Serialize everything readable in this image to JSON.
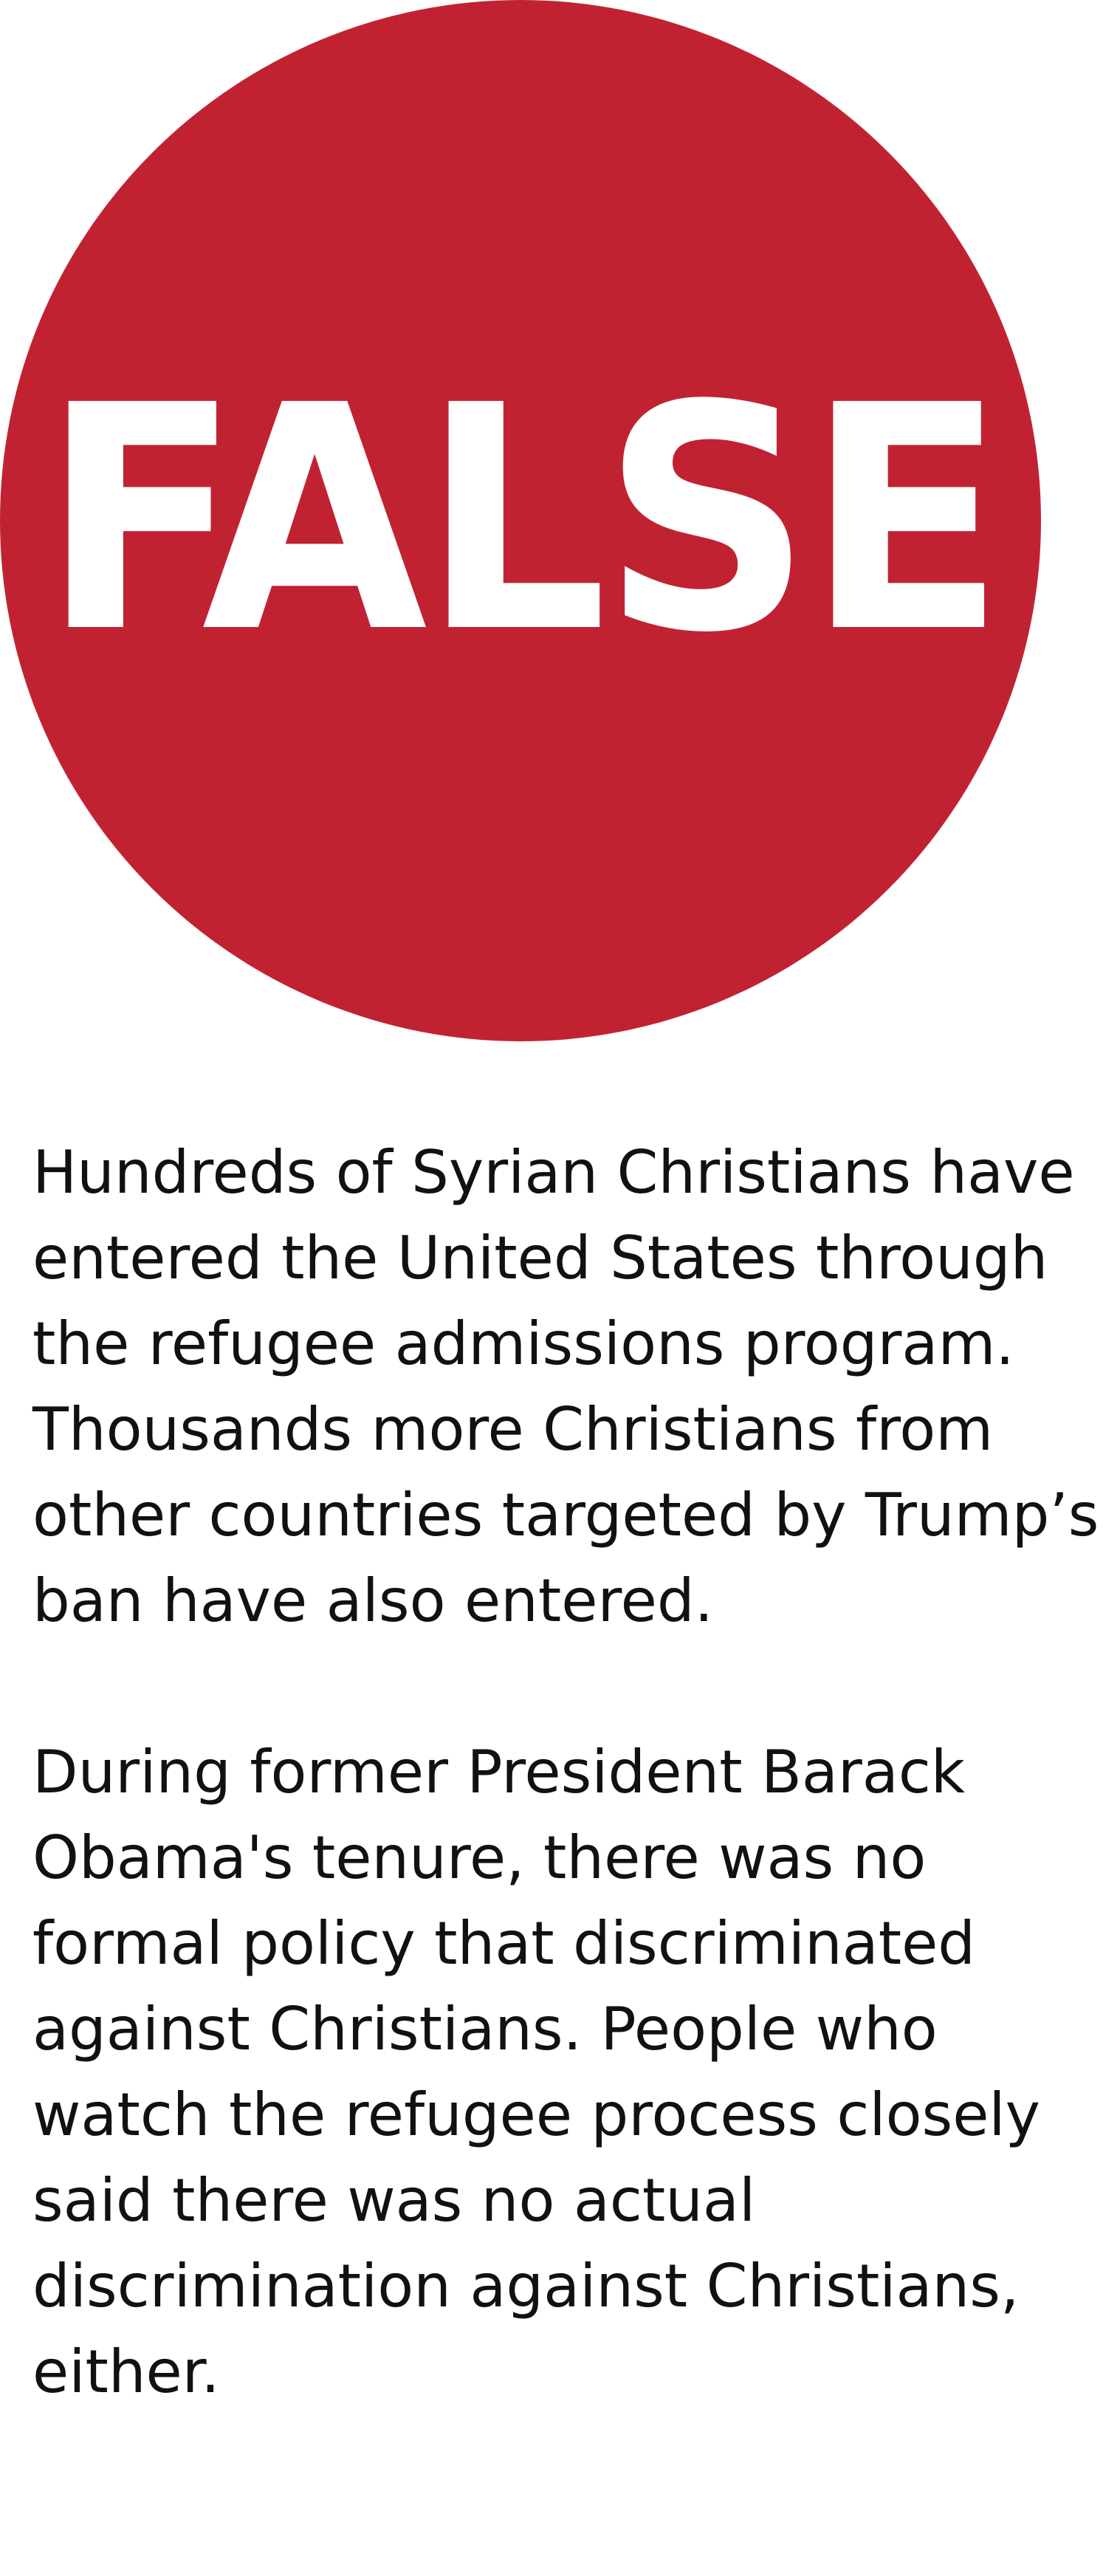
{
  "verdict": {
    "label": "FALSE",
    "color": "#c12232"
  },
  "paragraphs": [
    "Hundreds of Syrian Christians have entered the United States through the refugee admissions program. Thousands more Christians from other countries targeted by Trump’s ban have also entered.",
    "During former President Barack Obama's tenure, there was no formal policy that discriminated against Christians. People who watch the refugee process closely said there was no actual discrimination against Christians, either."
  ]
}
